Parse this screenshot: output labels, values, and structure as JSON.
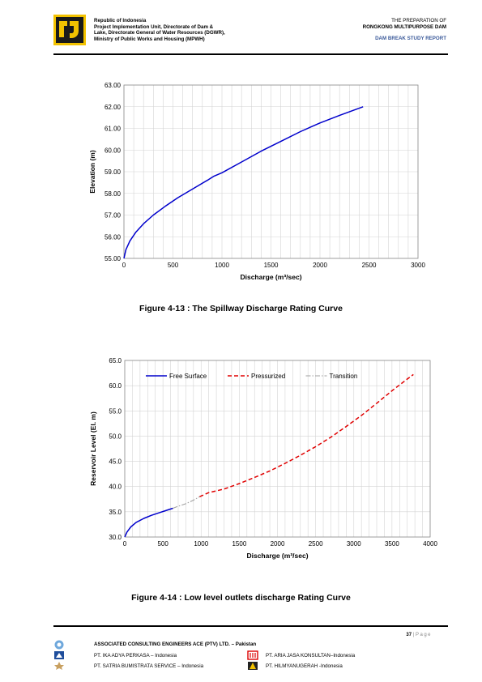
{
  "header": {
    "left_lines": [
      "Republic of Indonesia",
      "Project Implementation Unit, Directorate of Dam &",
      "Lake, Directorate General of Water Resources (DGWR),",
      "Ministry of Public Works and Housing (MPWH)"
    ],
    "right_line1": "THE PREPARATION OF",
    "right_line2": "RONGKONG MULTIPURPOSE DAM",
    "right_line3": "DAM BREAK STUDY REPORT"
  },
  "figures": {
    "fig1_caption": "Figure 4-13 : The Spillway Discharge Rating Curve",
    "fig2_caption": "Figure 4-14 : Low level outlets discharge Rating Curve"
  },
  "chart_data": [
    {
      "type": "line",
      "xlabel": "Discharge (m³/sec)",
      "ylabel": "Elevation (m)",
      "xlim": [
        0,
        3000
      ],
      "ylim": [
        55,
        63
      ],
      "x_ticks": [
        "0",
        "500",
        "1000",
        "1500",
        "2000",
        "2500",
        "3000"
      ],
      "y_ticks": [
        "55.00",
        "56.00",
        "57.00",
        "58.00",
        "59.00",
        "60.00",
        "61.00",
        "62.00",
        "63.00"
      ],
      "grid": true,
      "series": [
        {
          "color": "#0000cc",
          "x": [
            0,
            20,
            60,
            120,
            200,
            300,
            420,
            550,
            700,
            850,
            920,
            1000,
            1200,
            1400,
            1600,
            1800,
            2000,
            2200,
            2440
          ],
          "y": [
            55.0,
            55.4,
            55.8,
            56.2,
            56.6,
            57.0,
            57.4,
            57.8,
            58.2,
            58.6,
            58.8,
            58.95,
            59.45,
            59.95,
            60.4,
            60.85,
            61.25,
            61.6,
            62.0
          ]
        }
      ]
    },
    {
      "type": "line",
      "xlabel": "Discharge (m³/sec)",
      "ylabel": "Reservoir Level (El. m)",
      "xlim": [
        0,
        4000
      ],
      "ylim": [
        30,
        65
      ],
      "x_ticks": [
        "0",
        "500",
        "1000",
        "1500",
        "2000",
        "2500",
        "3000",
        "3500",
        "4000"
      ],
      "y_ticks": [
        "30.0",
        "35.0",
        "40.0",
        "45.0",
        "50.0",
        "55.0",
        "60.0",
        "65.0"
      ],
      "grid": true,
      "legend_position": "top",
      "series": [
        {
          "name": "Free Surface",
          "color": "#0000cc",
          "dash": "solid",
          "x": [
            0,
            30,
            80,
            150,
            250,
            350,
            450,
            550,
            630
          ],
          "y": [
            30.0,
            31.0,
            32.0,
            32.9,
            33.7,
            34.3,
            34.8,
            35.3,
            35.7
          ]
        },
        {
          "name": "Pressurized",
          "color": "#e00000",
          "dash": "dashed",
          "x": [
            980,
            1100,
            1300,
            1500,
            1700,
            1900,
            2100,
            2300,
            2500,
            2700,
            2900,
            3100,
            3300,
            3500,
            3700,
            3780
          ],
          "y": [
            38.0,
            38.8,
            39.5,
            40.6,
            41.8,
            43.1,
            44.6,
            46.2,
            47.9,
            49.8,
            51.9,
            54.1,
            56.5,
            59.0,
            61.3,
            62.2
          ]
        },
        {
          "name": "Transition",
          "color": "#a0a0a0",
          "dash": "dashdot",
          "x": [
            630,
            700,
            800,
            900,
            980
          ],
          "y": [
            35.7,
            36.1,
            36.6,
            37.3,
            38.0
          ]
        }
      ]
    }
  ],
  "footer": {
    "page_number": "37",
    "page_separator": "|",
    "page_word": "Page",
    "company_main": "ASSOCIATED CONSULTING ENGINEERS ACE (PTV) LTD. – Pakistan",
    "partners": [
      "PT. IKA ADYA PERKASA – Indonesia",
      "PT. ARIA JASA KONSULTAN–Indonesia",
      "PT. SATRIA BUMISTRATA SERVICE – Indonesia",
      "PT. HILMYANUGERAH -Indonesia"
    ]
  }
}
